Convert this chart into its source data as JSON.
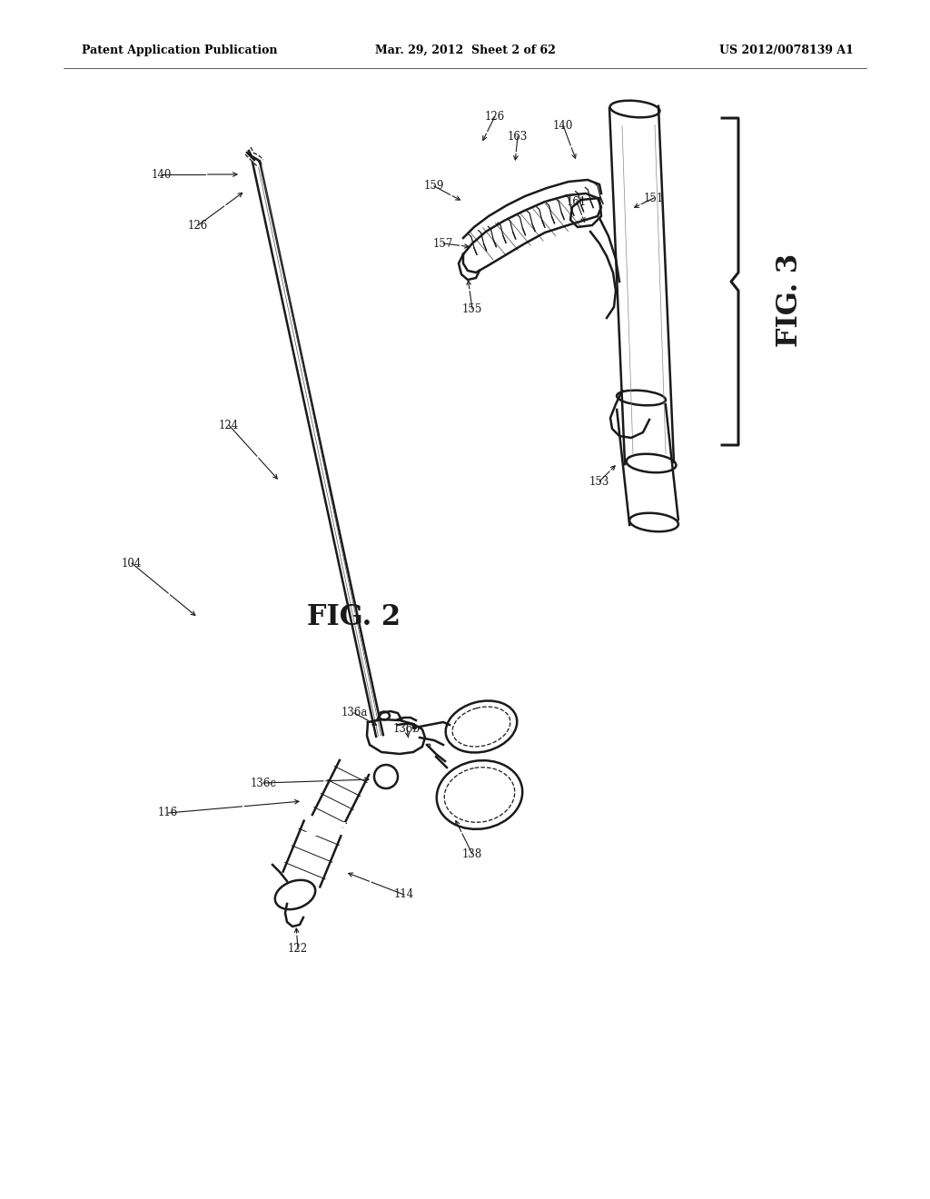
{
  "background_color": "#ffffff",
  "header_left": "Patent Application Publication",
  "header_center": "Mar. 29, 2012  Sheet 2 of 62",
  "header_right": "US 2012/0078139 A1",
  "fig2_label": "FIG. 2",
  "fig3_label": "FIG. 3",
  "line_color": "#1a1a1a",
  "line_width": 1.8,
  "thin_line": 0.9
}
